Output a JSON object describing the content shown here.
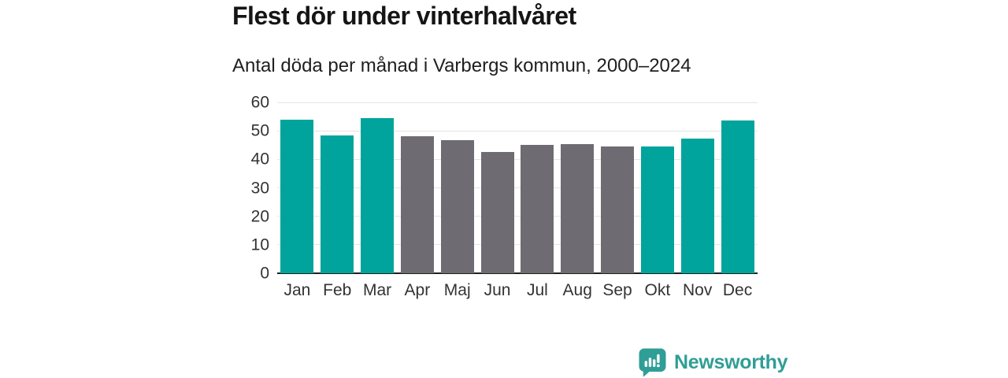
{
  "chart_data": {
    "type": "bar",
    "title": "Flest dör under vinterhalvåret",
    "subtitle": "Antal döda per månad i Varbergs kommun, 2000–2024",
    "categories": [
      "Jan",
      "Feb",
      "Mar",
      "Apr",
      "Maj",
      "Jun",
      "Jul",
      "Aug",
      "Sep",
      "Okt",
      "Nov",
      "Dec"
    ],
    "values": [
      54.0,
      48.3,
      54.4,
      48.0,
      46.8,
      42.5,
      45.2,
      45.4,
      44.6,
      44.4,
      47.4,
      53.7
    ],
    "highlighted": [
      true,
      true,
      true,
      false,
      false,
      false,
      false,
      false,
      false,
      true,
      true,
      true
    ],
    "xlabel": "",
    "ylabel": "",
    "ylim": [
      0,
      60
    ],
    "yticks": [
      0,
      10,
      20,
      30,
      40,
      50,
      60
    ],
    "grid": "horizontal-only",
    "legend_position": "none",
    "colors": {
      "highlight_bar": "#00a49c",
      "muted_bar": "#6e6b72",
      "gridline": "#e4e4e6",
      "axis_line": "#202020",
      "title_text": "#151515",
      "tick_text": "#333333"
    }
  },
  "footer": {
    "brand": "Newsworthy",
    "brand_color": "#2f9e96",
    "logo_icon": "speech-bubble-bar-chart-icon"
  }
}
